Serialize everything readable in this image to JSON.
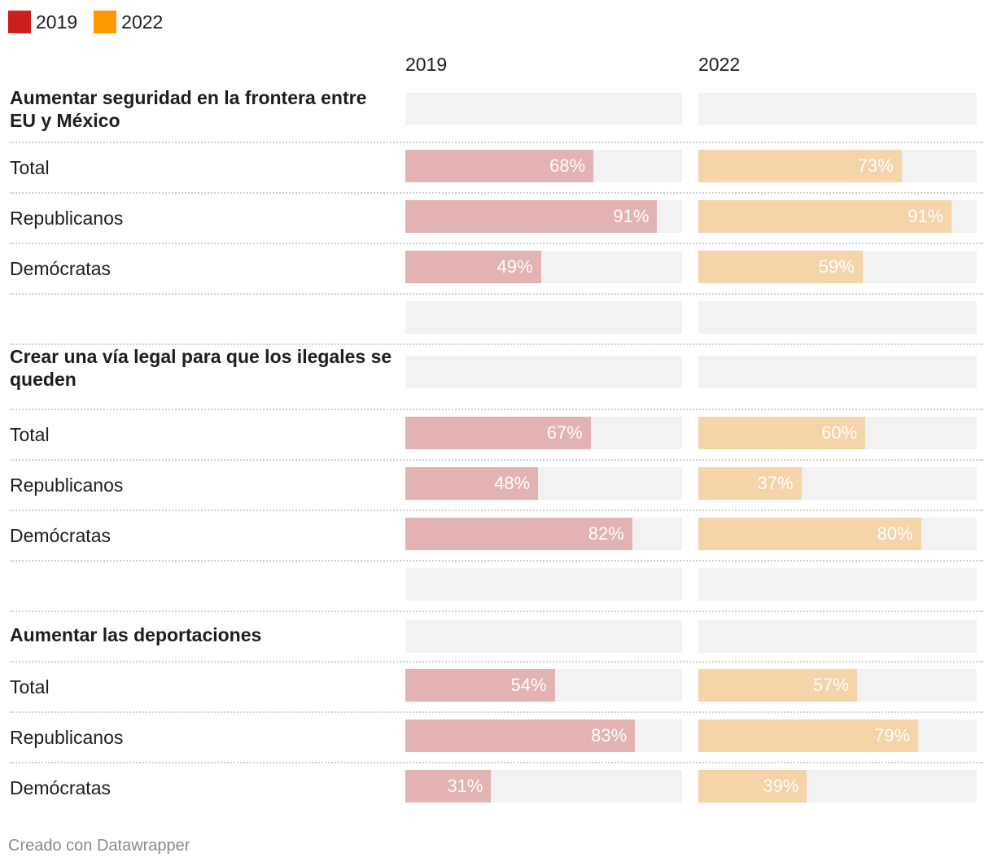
{
  "chart_data": {
    "type": "bar",
    "legend": [
      {
        "name": "2019",
        "color": "#cc1f1f"
      },
      {
        "name": "2022",
        "color": "#ff9900"
      }
    ],
    "column_headers": [
      "2019",
      "2022"
    ],
    "bar_colors": {
      "2019": "#e3b2b2",
      "2022": "#f4d4a8"
    },
    "xlim": [
      0,
      100
    ],
    "unit": "%",
    "groups": [
      {
        "title": "Aumentar seguridad en la frontera entre EU y México",
        "rows": [
          {
            "label": "Total",
            "v2019": 68,
            "v2022": 73
          },
          {
            "label": "Republicanos",
            "v2019": 91,
            "v2022": 91
          },
          {
            "label": "Demócratas",
            "v2019": 49,
            "v2022": 59
          }
        ]
      },
      {
        "title": "Crear una vía legal para que los ilegales se queden",
        "rows": [
          {
            "label": "Total",
            "v2019": 67,
            "v2022": 60
          },
          {
            "label": "Republicanos",
            "v2019": 48,
            "v2022": 37
          },
          {
            "label": "Demócratas",
            "v2019": 82,
            "v2022": 80
          }
        ]
      },
      {
        "title": "Aumentar las deportaciones",
        "rows": [
          {
            "label": "Total",
            "v2019": 54,
            "v2022": 57
          },
          {
            "label": "Republicanos",
            "v2019": 83,
            "v2022": 79
          },
          {
            "label": "Demócratas",
            "v2019": 31,
            "v2022": 39
          }
        ]
      }
    ]
  },
  "footer": "Creado con Datawrapper"
}
